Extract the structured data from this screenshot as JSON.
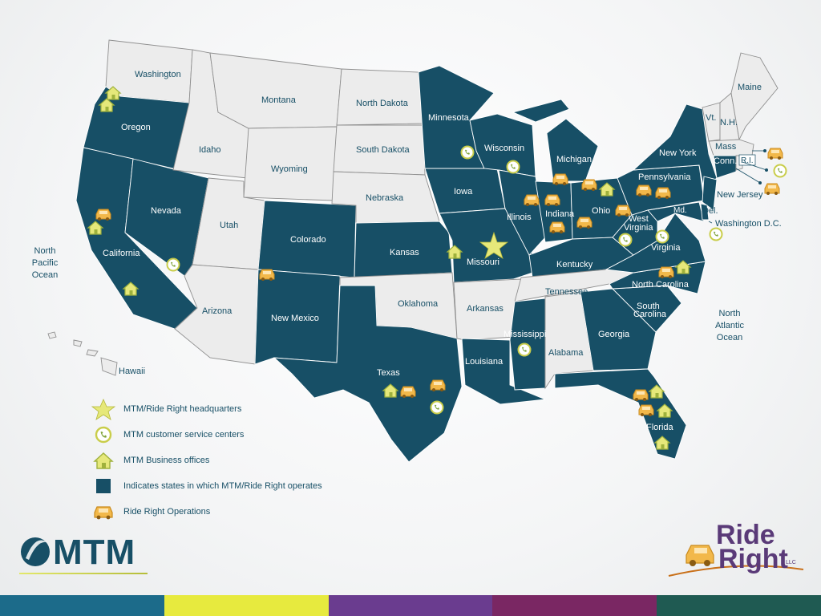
{
  "states": {
    "washington": "Washington",
    "oregon": "Oregon",
    "california": "California",
    "nevada": "Nevada",
    "idaho": "Idaho",
    "montana": "Montana",
    "wyoming": "Wyoming",
    "utah": "Utah",
    "arizona": "Arizona",
    "colorado": "Colorado",
    "new_mexico": "New Mexico",
    "north_dakota": "North Dakota",
    "south_dakota": "South Dakota",
    "nebraska": "Nebraska",
    "kansas": "Kansas",
    "oklahoma": "Oklahoma",
    "texas": "Texas",
    "minnesota": "Minnesota",
    "iowa": "Iowa",
    "missouri": "Missouri",
    "arkansas": "Arkansas",
    "louisiana": "Louisiana",
    "wisconsin": "Wisconsin",
    "illinois": "Illinois",
    "michigan": "Michigan",
    "indiana": "Indiana",
    "ohio": "Ohio",
    "kentucky": "Kentucky",
    "tennessee": "Tennessee",
    "mississippi": "Mississippi",
    "alabama": "Alabama",
    "georgia": "Georgia",
    "florida": "Florida",
    "south_carolina": "South\nCarolina",
    "north_carolina": "North Carolina",
    "virginia": "Virginia",
    "west_virginia": "West\nVirginia",
    "pennsylvania": "Pennsylvania",
    "new_york": "New York",
    "vermont": "Vt.",
    "new_hampshire": "N.H.",
    "maine": "Maine",
    "massachusetts": "Mass",
    "connecticut": "Conn.",
    "rhode_island": "R.I.",
    "new_jersey": "New Jersey",
    "delaware": "Del.",
    "maryland": "Md.",
    "washington_dc": "Washington D.C.",
    "hawaii": "Hawaii"
  },
  "oceans": {
    "pacific": "North\nPacific\nOcean",
    "atlantic": "North\nAtlantic\nOcean"
  },
  "legend": {
    "headquarters": "MTM/Ride Right headquarters",
    "customer_service": "MTM customer service centers",
    "business_offices": "MTM Business offices",
    "operates": "Indicates states in which MTM/Ride Right operates",
    "operations": "Ride Right Operations"
  },
  "logos": {
    "mtm": "MTM",
    "rideright_line1": "Ride",
    "rideright_line2": "Right",
    "rideright_llc": "LLC"
  },
  "colors": {
    "operating_state": "#174f66",
    "non_operating_state": "#ececec",
    "marker_fill": "#e6e87a",
    "car_fill": "#f2b84a"
  },
  "footer_colors": [
    "#1c6b8a",
    "#e7ea3e",
    "#6a3c8f",
    "#7a2763",
    "#1f5a52"
  ]
}
